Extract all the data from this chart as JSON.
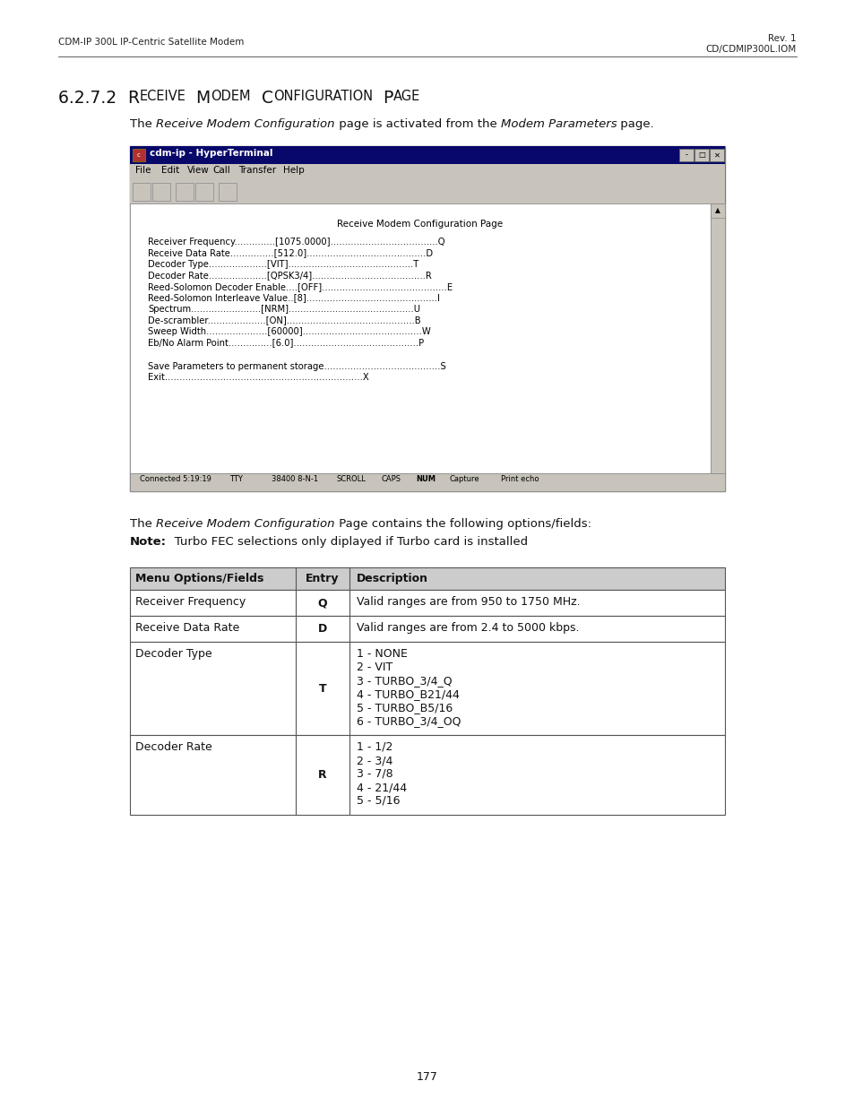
{
  "page_bg": "#ffffff",
  "header_left": "CDM-IP 300L IP-Centric Satellite Modem",
  "header_right_line1": "Rev. 1",
  "header_right_line2": "CD/CDMIP300L.IOM",
  "section_number": "6.2.7.2",
  "section_title_caps": "RECEIVE MODEM CONFIGURATION PAGE",
  "intro_pre": "The ",
  "intro_italic": "Receive Modem Configuration",
  "intro_mid": " page is activated from the ",
  "intro_italic2": "Modem Parameters",
  "intro_post": " page.",
  "terminal_title": "cdm-ip - HyperTerminal",
  "terminal_menu_items": [
    "File",
    "Edit",
    "View",
    "Call",
    "Transfer",
    "Help"
  ],
  "terminal_content_title": "Receive Modem Configuration Page",
  "terminal_lines": [
    "Receiver Frequency..............[1075.0000].....................................Q",
    "Receive Data Rate...............[512.0].........................................D",
    "Decoder Type....................[VIT]...........................................T",
    "Decoder Rate....................[QPSK3/4].......................................R",
    "Reed-Solomon Decoder Enable....[OFF]...........................................E",
    "Reed-Solomon Interleave Value..[8].............................................I",
    "Spectrum........................[NRM]...........................................U",
    "De-scrambler....................[ON]............................................B",
    "Sweep Width.....................[60000].........................................W",
    "Eb/No Alarm Point...............[6.0]...........................................P"
  ],
  "terminal_save": "Save Parameters to permanent storage........................................S",
  "terminal_exit": "Exit....................................................................X",
  "status_left": "Connected 5:19:19",
  "status_items": [
    "TTY",
    "38400 8-N-1",
    "SCROLL",
    "CAPS",
    "NUM",
    "Capture",
    "Print echo"
  ],
  "para2_pre": "The ",
  "para2_italic": "Receive Modem Configuration",
  "para2_post": " Page contains the following options/fields:",
  "note_bold": "Note:",
  "note_normal": "   Turbo FEC selections only diplayed if Turbo card is installed",
  "table_col0_header": "Menu Options/Fields",
  "table_col1_header": "Entry",
  "table_col2_header": "Description",
  "table_rows": [
    {
      "field": "Receiver Frequency",
      "entry": "Q",
      "desc": [
        "Valid ranges are from 950 to 1750 MHz."
      ]
    },
    {
      "field": "Receive Data Rate",
      "entry": "D",
      "desc": [
        "Valid ranges are from 2.4 to 5000 kbps."
      ]
    },
    {
      "field": "Decoder Type",
      "entry": "T",
      "desc": [
        "1 - NONE",
        "2 - VIT",
        "3 - TURBO_3/4_Q",
        "4 - TURBO_B21/44",
        "5 - TURBO_B5/16",
        "6 - TURBO_3/4_OQ"
      ]
    },
    {
      "field": "Decoder Rate",
      "entry": "R",
      "desc": [
        "1 - 1/2",
        "2 - 3/4",
        "3 - 7/8",
        "4 - 21/44",
        "5 - 5/16"
      ]
    }
  ],
  "page_number": "177"
}
